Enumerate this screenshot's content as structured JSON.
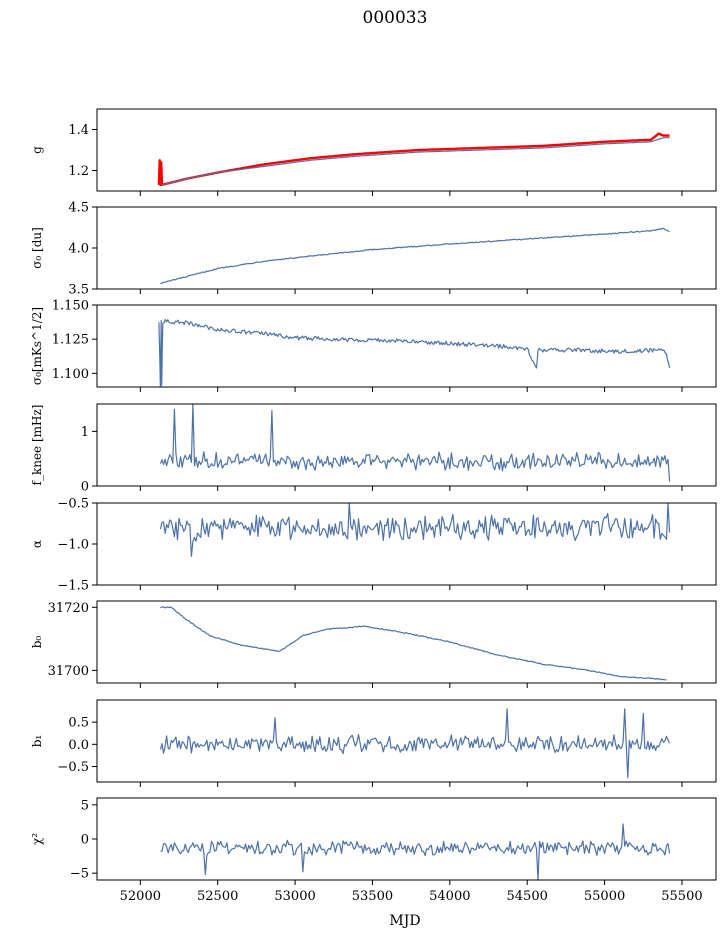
{
  "figure": {
    "title": "000033",
    "xlabel": "MJD",
    "x_ticks": [
      52000,
      52500,
      53000,
      53500,
      54000,
      54500,
      55000,
      55500
    ],
    "x_tick_labels": [
      "52000",
      "52500",
      "53000",
      "53500",
      "54000",
      "54500",
      "55000",
      "55500"
    ],
    "xlim": [
      51720,
      55720
    ]
  },
  "colors": {
    "series": "#4c72a8",
    "fit": "#ff0000",
    "axes": "#000000"
  },
  "chart_data": [
    {
      "type": "line",
      "id": "g",
      "ylabel": "g",
      "ylim": [
        1.1,
        1.5
      ],
      "yticks": [
        1.2,
        1.4
      ],
      "ytick_labels": [
        "1.2",
        "1.4"
      ],
      "series": [
        {
          "name": "g fit",
          "color": "#ff0000",
          "x": [
            52120,
            52125,
            52130,
            52135,
            52140,
            52300,
            52500,
            52800,
            53100,
            53400,
            53800,
            54200,
            54600,
            55000,
            55300,
            55350,
            55380,
            55420
          ],
          "y": [
            1.13,
            1.25,
            1.13,
            1.24,
            1.13,
            1.16,
            1.19,
            1.23,
            1.26,
            1.28,
            1.3,
            1.31,
            1.32,
            1.34,
            1.35,
            1.38,
            1.37,
            1.37
          ]
        },
        {
          "name": "g",
          "color": "#4c72a8",
          "x": [
            52140,
            52300,
            52500,
            52800,
            53100,
            53400,
            53800,
            54200,
            54600,
            55000,
            55300,
            55380,
            55420
          ],
          "y": [
            1.13,
            1.16,
            1.19,
            1.22,
            1.25,
            1.27,
            1.29,
            1.3,
            1.31,
            1.33,
            1.34,
            1.36,
            1.36
          ]
        }
      ]
    },
    {
      "type": "line",
      "id": "sigma0_du",
      "ylabel": "σ₀ [du]",
      "ylim": [
        3.5,
        4.5
      ],
      "yticks": [
        3.5,
        4.0,
        4.5
      ],
      "ytick_labels": [
        "3.5",
        "4.0",
        "4.5"
      ],
      "series": [
        {
          "name": "sigma0 du",
          "color": "#4c72a8",
          "x": [
            52130,
            52300,
            52500,
            52800,
            53100,
            53500,
            54000,
            54500,
            55000,
            55300,
            55380,
            55420
          ],
          "y": [
            3.57,
            3.65,
            3.75,
            3.84,
            3.9,
            3.98,
            4.05,
            4.11,
            4.17,
            4.21,
            4.24,
            4.2
          ]
        }
      ]
    },
    {
      "type": "line",
      "id": "sigma0_mks",
      "ylabel": "σ₀[mKs^1/2]",
      "ylim": [
        1.09,
        1.15
      ],
      "yticks": [
        1.1,
        1.125,
        1.15
      ],
      "ytick_labels": [
        "1.100",
        "1.125",
        "1.150"
      ],
      "series": [
        {
          "name": "sigma0 mKs",
          "color": "#4c72a8",
          "x": [
            52120,
            52130,
            52135,
            52138,
            52145,
            52300,
            52500,
            52800,
            53000,
            53300,
            53600,
            54000,
            54300,
            54500,
            54560,
            54570,
            54800,
            55100,
            55350,
            55400,
            55420
          ],
          "y": [
            1.138,
            1.09,
            1.14,
            1.09,
            1.138,
            1.137,
            1.132,
            1.129,
            1.126,
            1.125,
            1.124,
            1.122,
            1.12,
            1.118,
            1.104,
            1.117,
            1.117,
            1.116,
            1.117,
            1.115,
            1.104
          ]
        }
      ]
    },
    {
      "type": "line",
      "id": "fknee",
      "ylabel": "f_knee [mHz]",
      "ylim": [
        0,
        1.5
      ],
      "yticks": [
        0,
        1
      ],
      "ytick_labels": [
        "0",
        "1"
      ],
      "series": [
        {
          "name": "fknee",
          "color": "#4c72a8",
          "mean": 0.45,
          "amp": 0.12,
          "x0": 52130,
          "x1": 55420,
          "step": 10,
          "spikes": [
            [
              52220,
              1.4
            ],
            [
              52340,
              1.5
            ],
            [
              52850,
              1.38
            ],
            [
              55420,
              0.08
            ]
          ]
        }
      ]
    },
    {
      "type": "line",
      "id": "alpha",
      "ylabel": "α",
      "ylim": [
        -1.5,
        -0.5
      ],
      "yticks": [
        -1.5,
        -1.0,
        -0.5
      ],
      "ytick_labels": [
        "−1.5",
        "−1.0",
        "−0.5"
      ],
      "series": [
        {
          "name": "alpha",
          "color": "#4c72a8",
          "mean": -0.8,
          "amp": 0.12,
          "x0": 52130,
          "x1": 55420,
          "step": 10,
          "spikes": [
            [
              52330,
              -1.15
            ],
            [
              55410,
              -0.5
            ],
            [
              53350,
              -0.5
            ]
          ]
        }
      ]
    },
    {
      "type": "line",
      "id": "b0",
      "ylabel": "b₀",
      "ylim": [
        31696,
        31722
      ],
      "yticks": [
        31700,
        31720
      ],
      "ytick_labels": [
        "31700",
        "31720"
      ],
      "series": [
        {
          "name": "b0",
          "color": "#4c72a8",
          "x": [
            52130,
            52200,
            52300,
            52450,
            52650,
            52900,
            53050,
            53200,
            53450,
            53700,
            54000,
            54300,
            54600,
            54900,
            55100,
            55300,
            55400
          ],
          "y": [
            31720,
            31720,
            31716,
            31711,
            31708,
            31706,
            31711,
            31713,
            31714,
            31712,
            31709,
            31705,
            31702,
            31700,
            31698,
            31697.5,
            31697
          ]
        }
      ]
    },
    {
      "type": "line",
      "id": "b1",
      "ylabel": "b₁",
      "ylim": [
        -0.85,
        1.0
      ],
      "yticks": [
        -0.5,
        0.0,
        0.5
      ],
      "ytick_labels": [
        "−0.5",
        "0.0",
        "0.5"
      ],
      "series": [
        {
          "name": "b1",
          "color": "#4c72a8",
          "mean": 0.0,
          "amp": 0.15,
          "x0": 52130,
          "x1": 55420,
          "step": 10,
          "spikes": [
            [
              52870,
              0.6
            ],
            [
              54370,
              0.8
            ],
            [
              55130,
              0.8
            ],
            [
              55150,
              -0.75
            ],
            [
              55250,
              0.7
            ]
          ]
        }
      ]
    },
    {
      "type": "line",
      "id": "chi2",
      "ylabel": "χ²",
      "ylim": [
        -6,
        6
      ],
      "yticks": [
        -5,
        0,
        5
      ],
      "ytick_labels": [
        "−5",
        "0",
        "5"
      ],
      "series": [
        {
          "name": "chi2",
          "color": "#4c72a8",
          "mean": -1.3,
          "amp": 0.8,
          "x0": 52130,
          "x1": 55420,
          "step": 10,
          "spikes": [
            [
              52420,
              -5.2
            ],
            [
              53050,
              -4.8
            ],
            [
              54570,
              -6
            ],
            [
              55120,
              2.2
            ]
          ]
        }
      ]
    }
  ]
}
